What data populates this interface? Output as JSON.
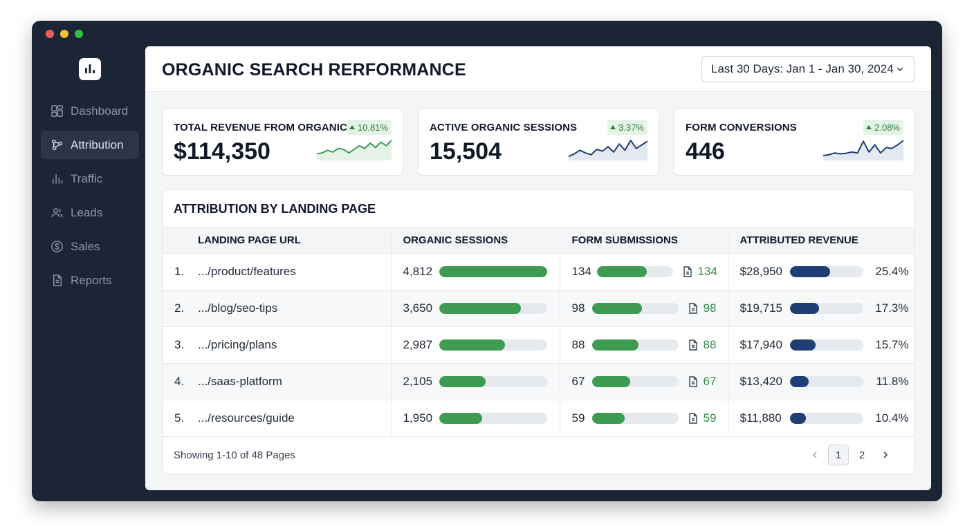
{
  "window": {
    "controls": [
      "close",
      "minimize",
      "zoom"
    ]
  },
  "sidebar": {
    "logo_icon": "bar-chart-icon",
    "items": [
      {
        "label": "Dashboard",
        "icon": "dashboard-icon",
        "active": false
      },
      {
        "label": "Attribution",
        "icon": "attribution-icon",
        "active": true
      },
      {
        "label": "Traffic",
        "icon": "traffic-icon",
        "active": false
      },
      {
        "label": "Leads",
        "icon": "leads-icon",
        "active": false
      },
      {
        "label": "Sales",
        "icon": "sales-icon",
        "active": false
      },
      {
        "label": "Reports",
        "icon": "reports-icon",
        "active": false
      }
    ]
  },
  "header": {
    "title": "ORGANIC SEARCH RERFORMANCE",
    "date_range": "Last 30 Days: Jan 1 - Jan 30, 2024"
  },
  "kpis": [
    {
      "label": "TOTAL REVENUE FROM ORGANIC",
      "value": "$114,350",
      "change": "10.81%",
      "trend": [
        0.25,
        0.3,
        0.45,
        0.35,
        0.55,
        0.5,
        0.3,
        0.5,
        0.7,
        0.55,
        0.85,
        0.6,
        0.9,
        0.7,
        1.0
      ],
      "color": "#3f9a52",
      "fill": "#e5f2e7"
    },
    {
      "label": "ACTIVE ORGANIC SESSIONS",
      "value": "15,504",
      "change": "3.37%",
      "trend": [
        0.1,
        0.25,
        0.45,
        0.3,
        0.2,
        0.5,
        0.4,
        0.65,
        0.35,
        0.8,
        0.45,
        1.0,
        0.55,
        0.75,
        0.95
      ],
      "color": "#1f3e73",
      "fill": "#e3e8f1"
    },
    {
      "label": "FORM CONVERSIONS",
      "value": "446",
      "change": "2.08%",
      "trend": [
        0.15,
        0.2,
        0.3,
        0.25,
        0.28,
        0.35,
        0.3,
        0.95,
        0.35,
        0.75,
        0.3,
        0.6,
        0.55,
        0.75,
        1.0
      ],
      "color": "#1f3e73",
      "fill": "#e3e8f1"
    }
  ],
  "attribution": {
    "title": "ATTRIBUTION BY LANDING PAGE",
    "columns": [
      "LANDING PAGE URL",
      "ORGANIC SESSIONS",
      "FORM SUBMISSIONS",
      "ATTRIBUTED REVENUE"
    ],
    "rows": [
      {
        "rank": "1.",
        "url": ".../product/features",
        "sessions": "4,812",
        "sessions_frac": 1.0,
        "submissions": "134",
        "submissions_frac": 0.66,
        "revenue": "$28,950",
        "revenue_frac": 0.55,
        "share": "25.4%"
      },
      {
        "rank": "2.",
        "url": ".../blog/seo-tips",
        "sessions": "3,650",
        "sessions_frac": 0.76,
        "submissions": "98",
        "submissions_frac": 0.58,
        "revenue": "$19,715",
        "revenue_frac": 0.4,
        "share": "17.3%"
      },
      {
        "rank": "3.",
        "url": ".../pricing/plans",
        "sessions": "2,987",
        "sessions_frac": 0.61,
        "submissions": "88",
        "submissions_frac": 0.54,
        "revenue": "$17,940",
        "revenue_frac": 0.35,
        "share": "15.7%"
      },
      {
        "rank": "4.",
        "url": ".../saas-platform",
        "sessions": "2,105",
        "sessions_frac": 0.43,
        "submissions": "67",
        "submissions_frac": 0.44,
        "revenue": "$13,420",
        "revenue_frac": 0.26,
        "share": "11.8%"
      },
      {
        "rank": "5.",
        "url": ".../resources/guide",
        "sessions": "1,950",
        "sessions_frac": 0.4,
        "submissions": "59",
        "submissions_frac": 0.38,
        "revenue": "$11,880",
        "revenue_frac": 0.22,
        "share": "10.4%"
      }
    ],
    "footer": "Showing 1-10 of 48 Pages",
    "pagination": {
      "current": "1",
      "next_page": "2",
      "prev_icon": "chevron-left-icon",
      "next_icon": "chevron-right-icon"
    }
  },
  "colors": {
    "sidebar_bg": "#1b2536",
    "accent_green": "#3f9a52",
    "accent_navy": "#1f3e73",
    "badge_bg": "#e3f3e6"
  }
}
